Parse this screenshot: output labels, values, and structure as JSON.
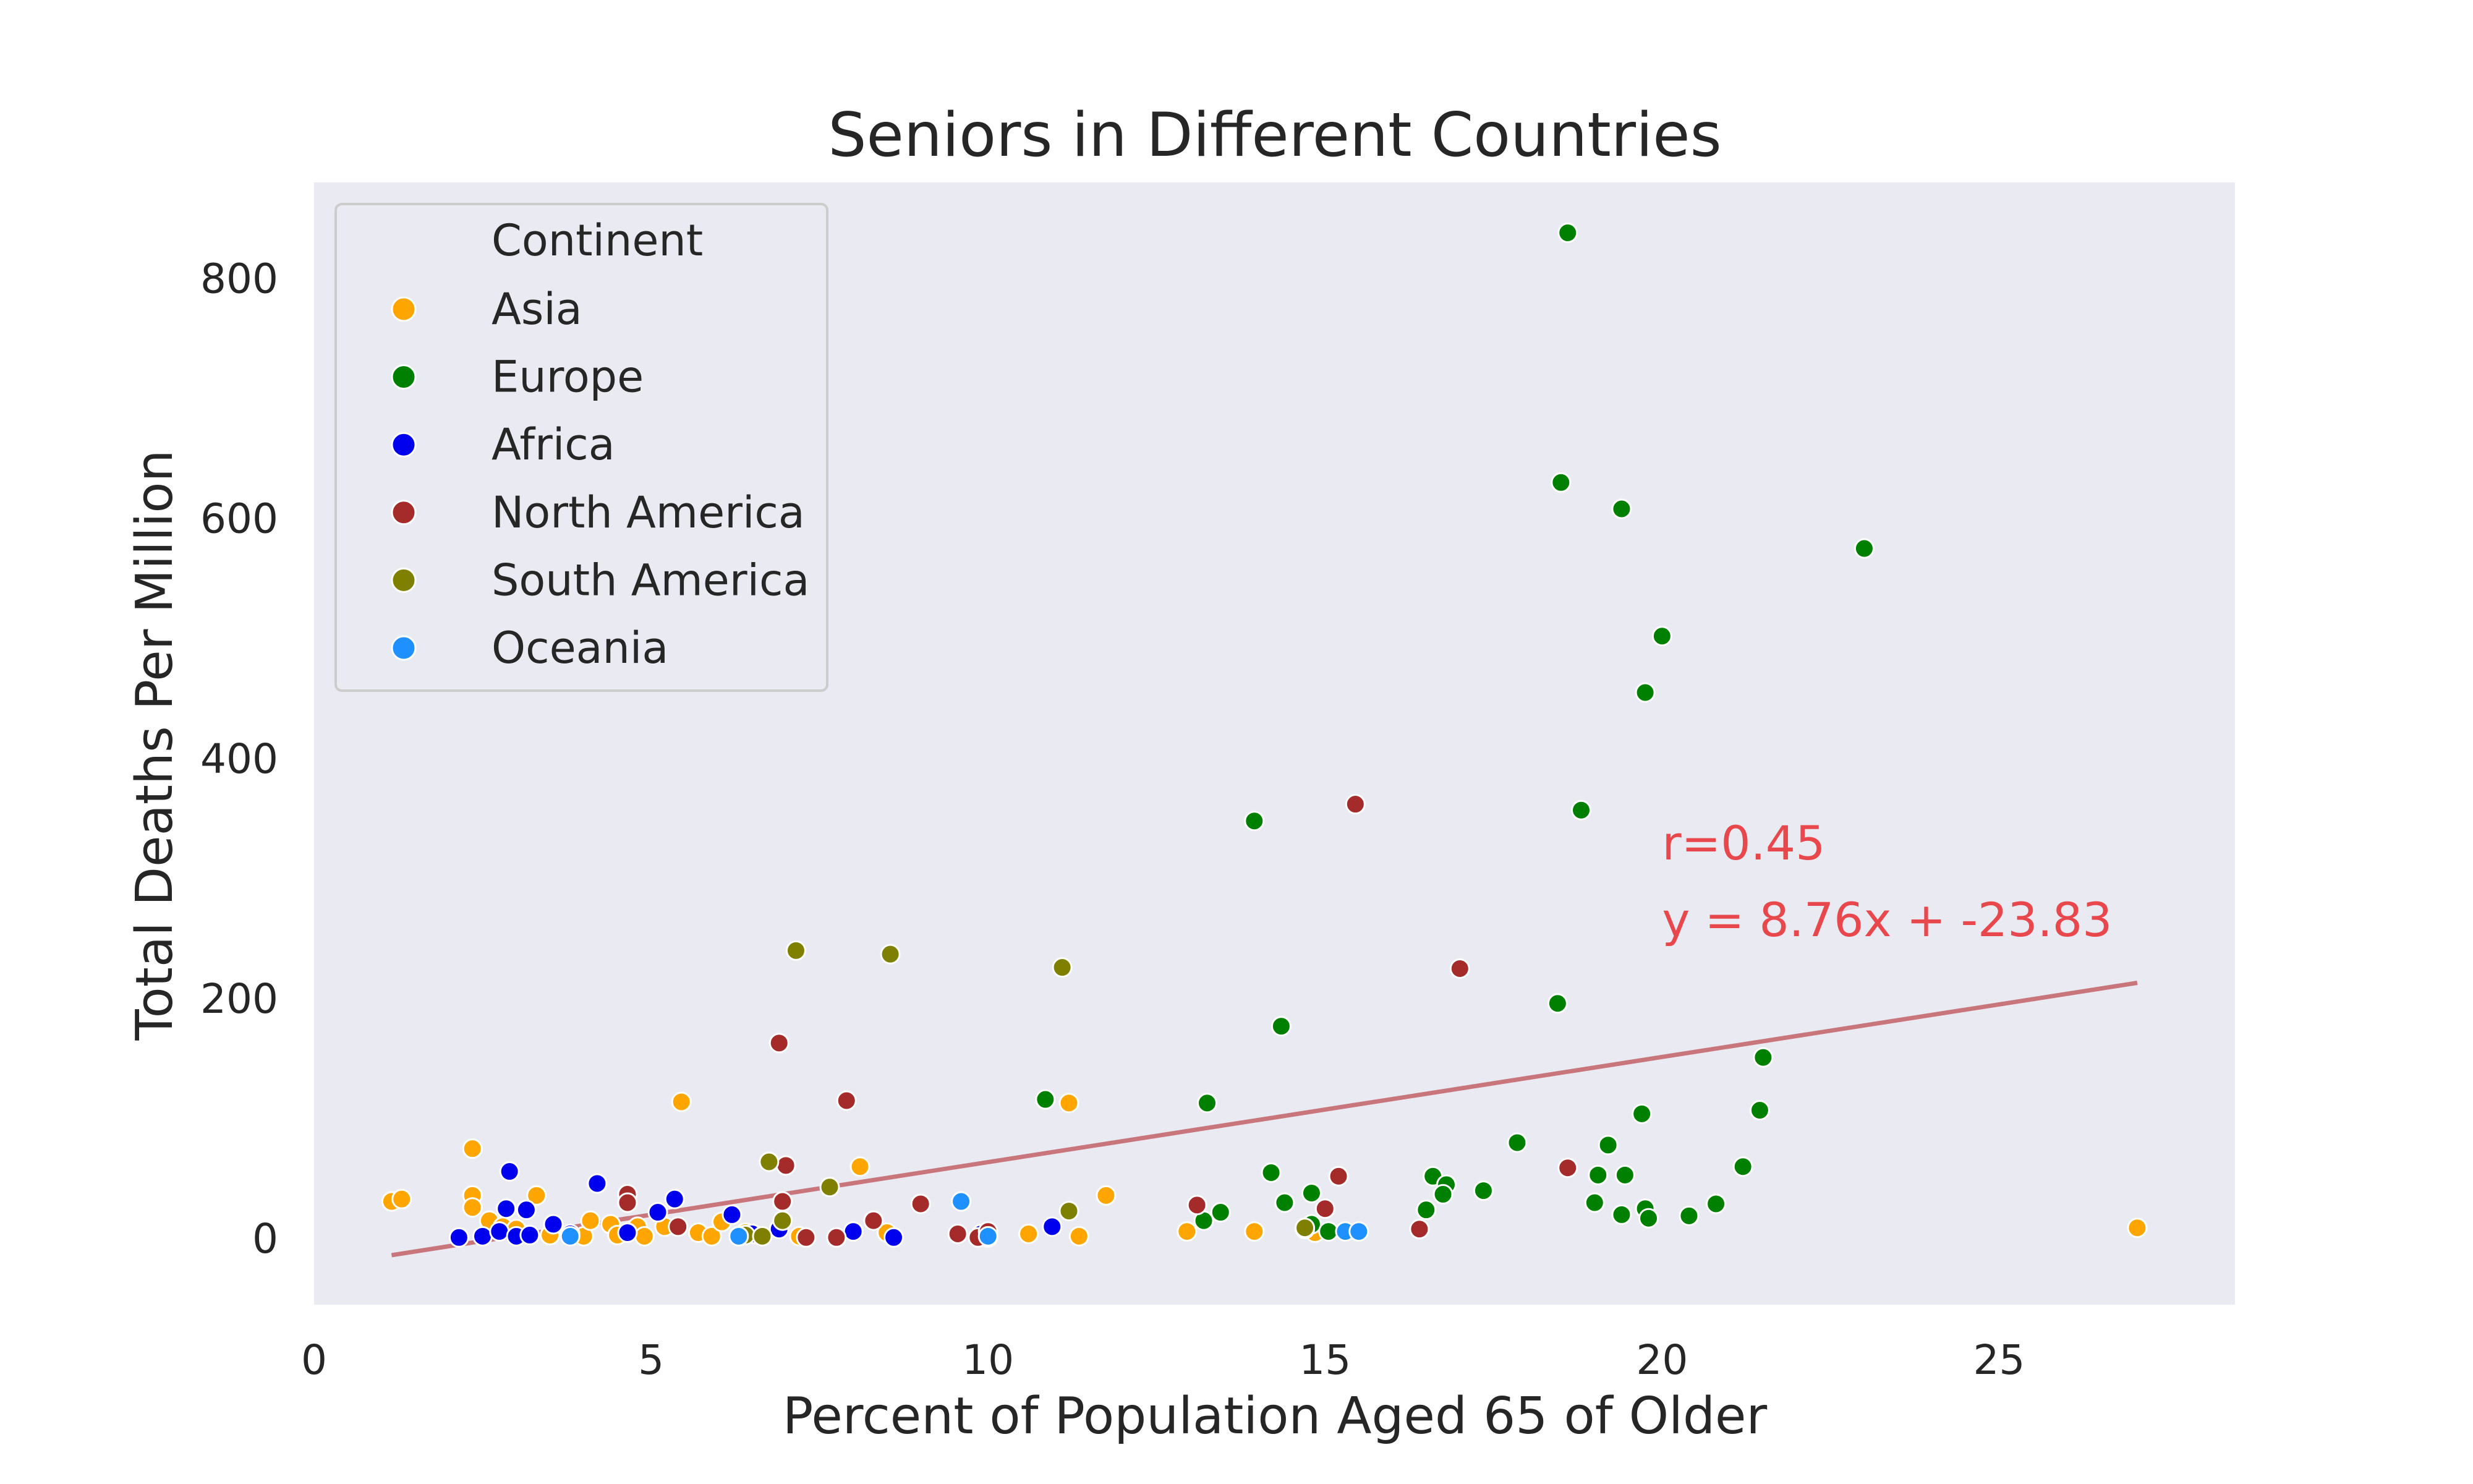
{
  "chart_data": {
    "type": "scatter",
    "title": "Seniors in Different Countries",
    "xlabel": "Percent of Population Aged 65 of Older",
    "ylabel": "Total Deaths Per Million",
    "xlim": [
      0,
      28.5
    ],
    "ylim": [
      -55,
      880
    ],
    "x_ticks": [
      0,
      5,
      10,
      15,
      20,
      25
    ],
    "y_ticks": [
      0,
      200,
      400,
      600,
      800
    ],
    "grid": false,
    "background_color": "#eaeaf2",
    "legend": {
      "title": "Continent",
      "placement": "top-left",
      "entries": [
        {
          "name": "Asia",
          "color": "#ffa500"
        },
        {
          "name": "Europe",
          "color": "#008000"
        },
        {
          "name": "Africa",
          "color": "#0000ee"
        },
        {
          "name": "North America",
          "color": "#a52a2a"
        },
        {
          "name": "South America",
          "color": "#808000"
        },
        {
          "name": "Oceania",
          "color": "#1e90ff"
        }
      ]
    },
    "series": [
      {
        "name": "Asia",
        "color": "#ffa500",
        "points": [
          [
            1.15,
            31
          ],
          [
            1.3,
            33
          ],
          [
            2.35,
            75
          ],
          [
            2.35,
            36
          ],
          [
            2.35,
            26
          ],
          [
            2.6,
            15
          ],
          [
            2.8,
            10
          ],
          [
            3.0,
            8
          ],
          [
            3.3,
            36
          ],
          [
            3.5,
            3
          ],
          [
            4.0,
            2
          ],
          [
            4.1,
            15
          ],
          [
            4.4,
            12
          ],
          [
            4.5,
            3
          ],
          [
            4.8,
            10
          ],
          [
            4.9,
            2
          ],
          [
            5.2,
            10
          ],
          [
            5.45,
            114
          ],
          [
            5.7,
            5
          ],
          [
            5.9,
            2
          ],
          [
            6.05,
            14
          ],
          [
            6.4,
            5
          ],
          [
            7.2,
            2
          ],
          [
            8.1,
            60
          ],
          [
            8.5,
            5
          ],
          [
            10.0,
            1
          ],
          [
            10.6,
            4
          ],
          [
            11.2,
            113
          ],
          [
            11.35,
            2
          ],
          [
            11.75,
            36
          ],
          [
            12.95,
            6
          ],
          [
            13.95,
            6
          ],
          [
            14.85,
            5
          ],
          [
            27.05,
            9
          ]
        ]
      },
      {
        "name": "Europe",
        "color": "#008000",
        "points": [
          [
            18.6,
            838
          ],
          [
            18.5,
            630
          ],
          [
            19.4,
            608
          ],
          [
            23.0,
            575
          ],
          [
            20.0,
            502
          ],
          [
            19.75,
            455
          ],
          [
            18.8,
            357
          ],
          [
            13.95,
            348
          ],
          [
            18.45,
            196
          ],
          [
            14.35,
            177
          ],
          [
            21.5,
            151
          ],
          [
            10.85,
            116
          ],
          [
            13.25,
            113
          ],
          [
            21.45,
            107
          ],
          [
            19.7,
            104
          ],
          [
            17.85,
            80
          ],
          [
            19.2,
            78
          ],
          [
            21.2,
            60
          ],
          [
            14.2,
            55
          ],
          [
            16.6,
            52
          ],
          [
            19.05,
            53
          ],
          [
            19.45,
            53
          ],
          [
            16.8,
            45
          ],
          [
            17.35,
            40
          ],
          [
            14.8,
            38
          ],
          [
            16.75,
            37
          ],
          [
            14.4,
            30
          ],
          [
            19.0,
            30
          ],
          [
            20.8,
            29
          ],
          [
            19.75,
            25
          ],
          [
            16.5,
            24
          ],
          [
            13.45,
            22
          ],
          [
            19.4,
            20
          ],
          [
            20.4,
            19
          ],
          [
            19.8,
            17
          ],
          [
            13.2,
            15
          ],
          [
            14.8,
            12
          ],
          [
            15.05,
            6
          ],
          [
            14.7,
            8
          ]
        ]
      },
      {
        "name": "Africa",
        "color": "#0000ee",
        "points": [
          [
            2.15,
            1
          ],
          [
            2.5,
            2
          ],
          [
            2.75,
            6
          ],
          [
            2.85,
            25
          ],
          [
            2.9,
            56
          ],
          [
            3.0,
            2
          ],
          [
            3.15,
            24
          ],
          [
            3.2,
            3
          ],
          [
            3.55,
            12
          ],
          [
            3.8,
            4
          ],
          [
            4.2,
            46
          ],
          [
            4.65,
            5
          ],
          [
            5.1,
            22
          ],
          [
            5.35,
            33
          ],
          [
            6.2,
            20
          ],
          [
            6.5,
            4
          ],
          [
            6.9,
            8
          ],
          [
            8.0,
            6
          ],
          [
            8.6,
            1
          ],
          [
            9.9,
            4
          ],
          [
            10.95,
            10
          ]
        ]
      },
      {
        "name": "North America",
        "color": "#a52a2a",
        "points": [
          [
            4.65,
            37
          ],
          [
            4.65,
            30
          ],
          [
            5.4,
            10
          ],
          [
            6.9,
            163
          ],
          [
            6.95,
            31
          ],
          [
            7.0,
            61
          ],
          [
            7.9,
            115
          ],
          [
            7.75,
            1
          ],
          [
            8.3,
            15
          ],
          [
            9.0,
            29
          ],
          [
            9.55,
            4
          ],
          [
            9.85,
            1
          ],
          [
            10.0,
            6
          ],
          [
            13.1,
            28
          ],
          [
            15.0,
            25
          ],
          [
            15.2,
            52
          ],
          [
            15.45,
            362
          ],
          [
            16.4,
            8
          ],
          [
            17.0,
            225
          ],
          [
            18.6,
            59
          ],
          [
            7.3,
            1
          ]
        ]
      },
      {
        "name": "South America",
        "color": "#808000",
        "points": [
          [
            6.4,
            3
          ],
          [
            6.65,
            2
          ],
          [
            6.75,
            64
          ],
          [
            6.95,
            15
          ],
          [
            7.15,
            240
          ],
          [
            7.65,
            43
          ],
          [
            8.55,
            237
          ],
          [
            11.1,
            226
          ],
          [
            11.2,
            23
          ],
          [
            14.7,
            9
          ]
        ]
      },
      {
        "name": "Oceania",
        "color": "#1e90ff",
        "points": [
          [
            3.8,
            2
          ],
          [
            6.3,
            2
          ],
          [
            9.6,
            31
          ],
          [
            10.0,
            2
          ],
          [
            15.3,
            6
          ],
          [
            15.5,
            6
          ]
        ]
      }
    ],
    "trend_line": {
      "x": [
        1.15,
        27.05
      ],
      "slope": 8.76,
      "intercept": -23.83,
      "color": "#c8757b"
    },
    "annotations": [
      {
        "text": "r=0.45",
        "x": 20.0,
        "y": 316,
        "color": "#e8474b"
      },
      {
        "text": "y = 8.76x + -23.83",
        "x": 20.0,
        "y": 252,
        "color": "#e8474b"
      }
    ]
  }
}
